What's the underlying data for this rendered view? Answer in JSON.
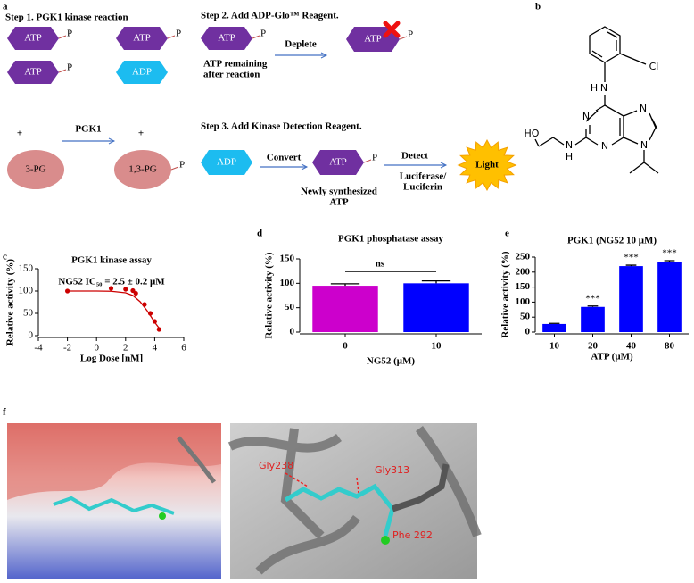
{
  "diagram": {
    "panel_label": "a",
    "steps": [
      "Step 1. PGK1 kinase reaction",
      "Step 2. Add ADP-Glo™ Reagent.",
      "Step 3. Add Kinase Detection Reagent."
    ],
    "molecules": [
      {
        "label": "ATP",
        "phosphate": "P"
      },
      {
        "label": "ATP",
        "phosphate": "P"
      },
      {
        "label": "ATP",
        "phosphate": "P"
      },
      {
        "label": "ADP"
      },
      {
        "label": "3-PG"
      },
      {
        "label": "1,3-PG",
        "phosphate": "P"
      },
      {
        "label": "ATP",
        "phosphate": "P"
      },
      {
        "label": "ATP",
        "phosphate": "P"
      },
      {
        "label": "ADP"
      },
      {
        "label": "ATP",
        "phosphate": "P"
      }
    ],
    "plus": [
      "+",
      "+"
    ],
    "arrows": [
      "PGK1",
      "Deplete",
      "Convert",
      "Detect"
    ],
    "notes": [
      [
        "ATP remaining",
        "after reaction"
      ],
      [
        "Newly synthesized",
        "ATP"
      ],
      [
        "Luciferase/",
        "Luciferin"
      ]
    ],
    "light": "Light"
  },
  "structure": {
    "panel_label": "b",
    "atoms": [
      "H",
      "N",
      "Cl",
      "N",
      "N",
      "N",
      "N",
      "N",
      "H",
      "HO"
    ]
  },
  "chart_data": [
    {
      "type": "scatter",
      "panel_label": "c",
      "title": "PGK1 kinase assay",
      "annotation": "NG52 IC₅₀ = 2.5 ± 0.2 μM",
      "x_label": "Log Dose [nM]",
      "y_label": "Relative activity (%)",
      "x": [
        -2,
        1,
        2,
        2.5,
        2.7,
        3.3,
        3.7,
        4.0,
        4.3
      ],
      "values": [
        100,
        106,
        104,
        101,
        95,
        70,
        50,
        32,
        14
      ],
      "fit": {
        "x": [
          -2,
          0,
          1,
          2,
          2.5,
          3,
          3.5,
          3.8,
          4.0,
          4.3
        ],
        "values": [
          100,
          100,
          99.5,
          96,
          90,
          76,
          55,
          40,
          30,
          17
        ]
      },
      "color": "#cc0000",
      "xlim": [
        -4,
        6
      ],
      "xticks": [
        -4,
        -2,
        0,
        2,
        4,
        6
      ],
      "ylim": [
        0,
        150
      ],
      "yticks": [
        0,
        50,
        100,
        150
      ]
    },
    {
      "type": "bar",
      "panel_label": "d",
      "title": "PGK1 phosphatase assay",
      "annotation": "ns",
      "x_label": "NG52 (μM)",
      "y_label": "Relative activity (%)",
      "categories": [
        "0",
        "10"
      ],
      "values": [
        95,
        100
      ],
      "errors": [
        4,
        5
      ],
      "colors": [
        "#cc00cc",
        "#0000ff"
      ],
      "ylim": [
        0,
        150
      ],
      "yticks": [
        0,
        50,
        100,
        150
      ]
    },
    {
      "type": "bar",
      "panel_label": "e",
      "title": "PGK1 (NG52 10 μM)",
      "x_label": "ATP (μM)",
      "y_label": "Relative activity (%)",
      "categories": [
        "10",
        "20",
        "40",
        "80"
      ],
      "values": [
        27,
        84,
        220,
        234
      ],
      "errors": [
        2,
        3,
        3,
        4
      ],
      "significance": [
        null,
        "***",
        "***",
        "***"
      ],
      "colors": [
        "#0000ff",
        "#0000ff",
        "#0000ff",
        "#0000ff"
      ],
      "ylim": [
        0,
        250
      ],
      "yticks": [
        0,
        50,
        100,
        150,
        200,
        250
      ]
    }
  ],
  "docking": {
    "panel_label": "f",
    "residues": [
      "Gly238",
      "Gly313",
      "Phe 292"
    ]
  }
}
